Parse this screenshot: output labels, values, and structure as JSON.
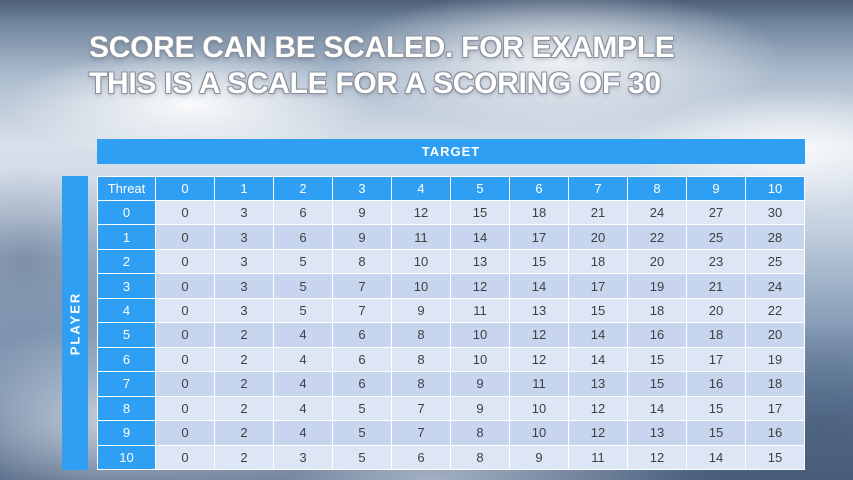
{
  "slide": {
    "title_line1": "SCORE CAN BE SCALED. FOR EXAMPLE",
    "title_line2": "THIS IS A SCALE FOR A SCORING OF 30"
  },
  "table": {
    "target_label": "TARGET",
    "player_label": "PLAYER",
    "corner_label": "Threat",
    "column_headers": [
      "0",
      "1",
      "2",
      "3",
      "4",
      "5",
      "6",
      "7",
      "8",
      "9",
      "10"
    ],
    "row_headers": [
      "0",
      "1",
      "2",
      "3",
      "4",
      "5",
      "6",
      "7",
      "8",
      "9",
      "10"
    ],
    "rows": [
      [
        0,
        3,
        6,
        9,
        12,
        15,
        18,
        21,
        24,
        27,
        30
      ],
      [
        0,
        3,
        6,
        9,
        11,
        14,
        17,
        20,
        22,
        25,
        28
      ],
      [
        0,
        3,
        5,
        8,
        10,
        13,
        15,
        18,
        20,
        23,
        25
      ],
      [
        0,
        3,
        5,
        7,
        10,
        12,
        14,
        17,
        19,
        21,
        24
      ],
      [
        0,
        3,
        5,
        7,
        9,
        11,
        13,
        15,
        18,
        20,
        22
      ],
      [
        0,
        2,
        4,
        6,
        8,
        10,
        12,
        14,
        16,
        18,
        20
      ],
      [
        0,
        2,
        4,
        6,
        8,
        10,
        12,
        14,
        15,
        17,
        19
      ],
      [
        0,
        2,
        4,
        6,
        8,
        9,
        11,
        13,
        15,
        16,
        18
      ],
      [
        0,
        2,
        4,
        5,
        7,
        9,
        10,
        12,
        14,
        15,
        17
      ],
      [
        0,
        2,
        4,
        5,
        7,
        8,
        10,
        12,
        13,
        15,
        16
      ],
      [
        0,
        2,
        3,
        5,
        6,
        8,
        9,
        11,
        12,
        14,
        15
      ]
    ]
  },
  "colors": {
    "header_blue": "#2E9FF2",
    "row_light": "#DCE6F5",
    "row_dark": "#C7D5EE",
    "cell_text": "#404040",
    "title_text": "#FFFFFF"
  }
}
